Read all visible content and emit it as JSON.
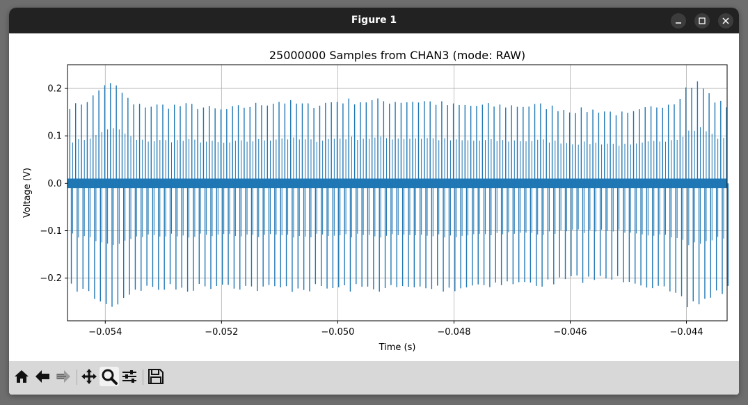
{
  "window": {
    "title": "Figure 1",
    "controls": [
      "minimize-icon",
      "maximize-icon",
      "close-icon"
    ]
  },
  "toolbar": {
    "buttons": [
      {
        "name": "home-button",
        "icon": "home-icon"
      },
      {
        "name": "back-button",
        "icon": "arrow-left-icon"
      },
      {
        "name": "forward-button",
        "icon": "arrow-right-icon"
      },
      {
        "name": "pan-button",
        "icon": "move-icon"
      },
      {
        "name": "zoom-button",
        "icon": "magnifier-icon",
        "active": true
      },
      {
        "name": "configure-button",
        "icon": "sliders-icon"
      },
      {
        "name": "save-button",
        "icon": "floppy-icon"
      }
    ]
  },
  "chart_data": {
    "type": "line",
    "title": "25000000 Samples from CHAN3 (mode: RAW)",
    "xlabel": "Time (s)",
    "ylabel": "Voltage (V)",
    "xlim": [
      -0.05465,
      -0.0433
    ],
    "ylim": [
      -0.29,
      0.25
    ],
    "xticks": [
      -0.054,
      -0.052,
      -0.05,
      -0.048,
      -0.046,
      -0.044
    ],
    "xtick_labels": [
      "−0.054",
      "−0.052",
      "−0.050",
      "−0.048",
      "−0.046",
      "−0.044"
    ],
    "yticks": [
      0.2,
      0.1,
      0.0,
      -0.1,
      -0.2
    ],
    "ytick_labels": [
      "0.2",
      "0.1",
      "0.0",
      "−0.1",
      "−0.2"
    ],
    "grid": true,
    "line_color": "#1f77b4",
    "series": [
      {
        "description": "dense oscillating signal",
        "pulse_period_s": 0.0001,
        "baseline_band": [
          -0.01,
          0.01
        ],
        "envelope": {
          "x": [
            -0.05465,
            -0.0545,
            -0.0542,
            -0.054,
            -0.0538,
            -0.0535,
            -0.053,
            -0.0525,
            -0.052,
            -0.0515,
            -0.051,
            -0.0505,
            -0.05,
            -0.0495,
            -0.049,
            -0.0485,
            -0.048,
            -0.0475,
            -0.047,
            -0.0465,
            -0.046,
            -0.0455,
            -0.045,
            -0.0445,
            -0.0442,
            -0.044,
            -0.0438,
            -0.0435,
            -0.0433
          ],
          "max": [
            0.17,
            0.17,
            0.19,
            0.22,
            0.21,
            0.17,
            0.17,
            0.17,
            0.16,
            0.17,
            0.18,
            0.17,
            0.18,
            0.18,
            0.18,
            0.18,
            0.17,
            0.17,
            0.17,
            0.17,
            0.16,
            0.16,
            0.15,
            0.17,
            0.18,
            0.21,
            0.22,
            0.18,
            0.17
          ],
          "min": [
            -0.23,
            -0.23,
            -0.25,
            -0.27,
            -0.26,
            -0.23,
            -0.23,
            -0.23,
            -0.22,
            -0.23,
            -0.23,
            -0.23,
            -0.23,
            -0.23,
            -0.23,
            -0.23,
            -0.23,
            -0.22,
            -0.22,
            -0.22,
            -0.21,
            -0.21,
            -0.21,
            -0.23,
            -0.25,
            -0.27,
            -0.26,
            -0.24,
            -0.23
          ]
        }
      }
    ]
  }
}
